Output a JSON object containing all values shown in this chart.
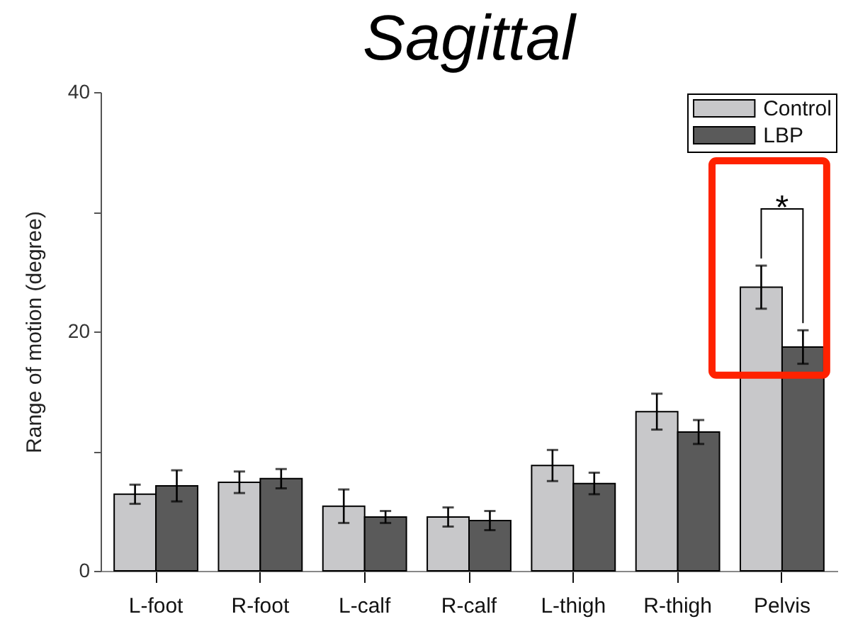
{
  "chart_data": {
    "type": "bar",
    "title": "Sagittal",
    "ylabel": "Range of motion (degree)",
    "categories": [
      "L-foot",
      "R-foot",
      "L-calf",
      "R-calf",
      "L-thigh",
      "R-thigh",
      "Pelvis"
    ],
    "series": [
      {
        "name": "Control",
        "color": "#c8c8ca",
        "values": [
          6.4,
          7.4,
          5.4,
          4.5,
          8.8,
          13.3,
          23.7
        ],
        "errors": [
          0.8,
          0.9,
          1.4,
          0.8,
          1.3,
          1.5,
          1.8
        ]
      },
      {
        "name": "LBP",
        "color": "#5a5a5a",
        "values": [
          7.1,
          7.7,
          4.5,
          4.2,
          7.3,
          11.6,
          18.7
        ],
        "errors": [
          1.3,
          0.8,
          0.5,
          0.8,
          0.9,
          1.0,
          1.4
        ]
      }
    ],
    "ylim": [
      0,
      40
    ],
    "yticks": [
      0,
      {
        "value": 10,
        "label": null
      },
      20,
      {
        "value": 30,
        "label": null
      },
      40
    ],
    "grid": false,
    "legend": "top right",
    "annotations": [
      "*"
    ]
  }
}
